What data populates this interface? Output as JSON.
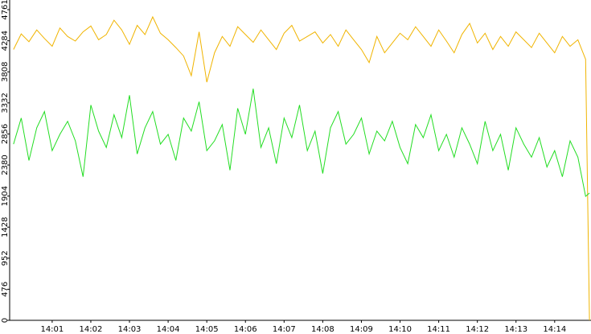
{
  "chart_data": {
    "type": "line",
    "x": [
      840.0,
      840.2,
      840.4,
      840.6,
      840.8,
      841.0,
      841.2,
      841.4,
      841.6,
      841.8,
      842.0,
      842.2,
      842.4,
      842.6,
      842.8,
      843.0,
      843.2,
      843.4,
      843.6,
      843.8,
      844.0,
      844.2,
      844.4,
      844.6,
      844.8,
      845.0,
      845.2,
      845.4,
      845.6,
      845.8,
      846.0,
      846.2,
      846.4,
      846.6,
      846.8,
      847.0,
      847.2,
      847.4,
      847.6,
      847.8,
      848.0,
      848.2,
      848.4,
      848.6,
      848.8,
      849.0,
      849.2,
      849.4,
      849.6,
      849.8,
      850.0,
      850.2,
      850.4,
      850.6,
      850.8,
      851.0,
      851.2,
      851.4,
      851.6,
      851.8,
      852.0,
      852.2,
      852.4,
      852.6,
      852.8,
      853.0,
      853.2,
      853.4,
      853.6,
      853.8,
      854.0,
      854.2,
      854.4,
      854.6,
      854.8,
      854.9
    ],
    "series": [
      {
        "color": "#f0b400",
        "values": [
          4150,
          4390,
          4270,
          4450,
          4320,
          4200,
          4480,
          4350,
          4280,
          4420,
          4510,
          4300,
          4380,
          4600,
          4450,
          4230,
          4520,
          4380,
          4650,
          4400,
          4300,
          4180,
          4050,
          3750,
          4420,
          3650,
          4100,
          4350,
          4200,
          4500,
          4380,
          4260,
          4450,
          4300,
          4150,
          4400,
          4520,
          4280,
          4350,
          4420,
          4250,
          4380,
          4200,
          4450,
          4300,
          4150,
          3950,
          4350,
          4100,
          4250,
          4400,
          4300,
          4500,
          4350,
          4200,
          4450,
          4280,
          4100,
          4380,
          4550,
          4250,
          4400,
          4150,
          4350,
          4200,
          4420,
          4300,
          4180,
          4400,
          4250,
          4100,
          4350,
          4200,
          4300,
          4000,
          0
        ]
      },
      {
        "color": "#22dd22",
        "values": [
          2700,
          3100,
          2450,
          2950,
          3200,
          2600,
          2850,
          3050,
          2750,
          2200,
          3300,
          2900,
          2650,
          3150,
          2800,
          3450,
          2550,
          2950,
          3200,
          2700,
          2850,
          2450,
          3100,
          2900,
          3350,
          2600,
          2750,
          3000,
          2300,
          3250,
          2850,
          3550,
          2650,
          2950,
          2400,
          3100,
          2800,
          3300,
          2600,
          2900,
          2250,
          2950,
          3200,
          2700,
          2850,
          3100,
          2550,
          2900,
          2750,
          3050,
          2650,
          2400,
          3000,
          2800,
          3150,
          2600,
          2850,
          2500,
          2950,
          2700,
          2400,
          3050,
          2600,
          2850,
          2300,
          2950,
          2700,
          2500,
          2800,
          2350,
          2600,
          2200,
          2750,
          2500,
          1900,
          1950
        ]
      }
    ],
    "xlim": [
      839.9,
      854.94
    ],
    "ylim": [
      0,
      4761
    ],
    "yticks": [
      0,
      476,
      952,
      1428,
      1904,
      2380,
      2856,
      3332,
      3808,
      4284,
      4761
    ],
    "xticks": [
      {
        "value": 841,
        "label": "14:01"
      },
      {
        "value": 842,
        "label": "14:02"
      },
      {
        "value": 843,
        "label": "14:03"
      },
      {
        "value": 844,
        "label": "14:04"
      },
      {
        "value": 845,
        "label": "14:05"
      },
      {
        "value": 846,
        "label": "14:06"
      },
      {
        "value": 847,
        "label": "14:07"
      },
      {
        "value": 848,
        "label": "14:08"
      },
      {
        "value": 849,
        "label": "14:09"
      },
      {
        "value": 850,
        "label": "14:10"
      },
      {
        "value": 851,
        "label": "14:11"
      },
      {
        "value": 852,
        "label": "14:12"
      },
      {
        "value": 853,
        "label": "14:13"
      },
      {
        "value": 854,
        "label": "14:14"
      }
    ]
  }
}
